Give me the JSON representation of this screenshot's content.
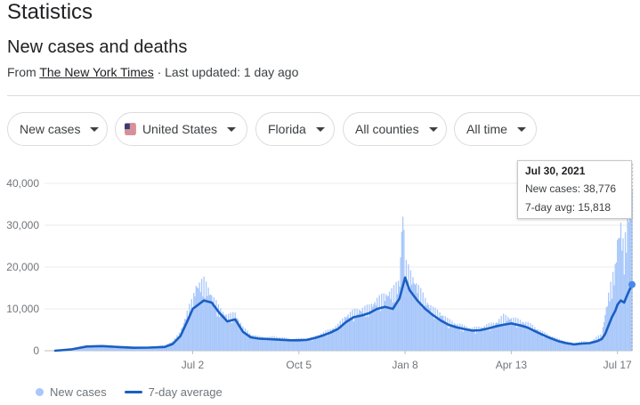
{
  "page": {
    "title": "Statistics",
    "subtitle": "New cases and deaths",
    "source_prefix": "From ",
    "source_name": "The New York Times",
    "source_suffix": " · Last updated: 1 day ago"
  },
  "filters": [
    {
      "label": "New cases"
    },
    {
      "label": "United States",
      "icon": "us-flag-icon"
    },
    {
      "label": "Florida"
    },
    {
      "label": "All counties"
    },
    {
      "label": "All time"
    }
  ],
  "tooltip": {
    "date": "Jul 30, 2021",
    "new_cases": "New cases: 38,776",
    "avg": "7-day avg: 15,818"
  },
  "legend": {
    "new_cases": "New cases",
    "avg": "7-day average"
  },
  "colors": {
    "bar": "#a8c7fa",
    "line": "#1a5fc2",
    "grid": "#ebebeb",
    "axis_text": "#70757a"
  },
  "chart_data": {
    "type": "bar",
    "ylim": [
      0,
      40000
    ],
    "yticks": [
      "0",
      "10,000",
      "20,000",
      "30,000",
      "40,000"
    ],
    "xticks": [
      "Jul 2",
      "Oct 5",
      "Jan 8",
      "Apr 13",
      "Jul 17"
    ],
    "grid": true,
    "legend_position": "bottom-left",
    "series": [
      {
        "name": "New cases",
        "type": "bar",
        "points": [
          [
            "Mar 1",
            0
          ],
          [
            "Mar 15",
            300
          ],
          [
            "Mar 29",
            1000
          ],
          [
            "Apr 12",
            1200
          ],
          [
            "Apr 26",
            800
          ],
          [
            "May 10",
            700
          ],
          [
            "May 24",
            800
          ],
          [
            "Jun 7",
            1200
          ],
          [
            "Jun 14",
            2000
          ],
          [
            "Jun 21",
            4000
          ],
          [
            "Jun 28",
            9000
          ],
          [
            "Jul 2",
            11000
          ],
          [
            "Jul 5",
            14000
          ],
          [
            "Jul 12",
            15000
          ],
          [
            "Jul 19",
            12000
          ],
          [
            "Jul 26",
            9000
          ],
          [
            "Aug 2",
            7500
          ],
          [
            "Aug 9",
            8000
          ],
          [
            "Aug 16",
            5000
          ],
          [
            "Aug 23",
            3500
          ],
          [
            "Aug 30",
            3000
          ],
          [
            "Sep 6",
            2800
          ],
          [
            "Sep 13",
            3000
          ],
          [
            "Sep 20",
            2800
          ],
          [
            "Sep 27",
            2500
          ],
          [
            "Oct 5",
            2600
          ],
          [
            "Oct 12",
            2500
          ],
          [
            "Oct 19",
            3000
          ],
          [
            "Oct 26",
            3800
          ],
          [
            "Nov 2",
            4500
          ],
          [
            "Nov 9",
            5500
          ],
          [
            "Nov 16",
            7500
          ],
          [
            "Nov 23",
            8500
          ],
          [
            "Nov 30",
            9000
          ],
          [
            "Dec 7",
            9500
          ],
          [
            "Dec 14",
            11000
          ],
          [
            "Dec 21",
            12000
          ],
          [
            "Dec 28",
            13000
          ],
          [
            "Jan 3",
            15000
          ],
          [
            "Jan 6",
            31500
          ],
          [
            "Jan 8",
            19000
          ],
          [
            "Jan 12",
            17000
          ],
          [
            "Jan 19",
            14000
          ],
          [
            "Jan 26",
            11000
          ],
          [
            "Feb 2",
            9000
          ],
          [
            "Feb 9",
            8000
          ],
          [
            "Feb 16",
            6500
          ],
          [
            "Feb 23",
            5800
          ],
          [
            "Mar 2",
            5200
          ],
          [
            "Mar 9",
            4800
          ],
          [
            "Mar 16",
            5000
          ],
          [
            "Mar 23",
            5500
          ],
          [
            "Mar 30",
            6000
          ],
          [
            "Apr 6",
            7500
          ],
          [
            "Apr 13",
            7000
          ],
          [
            "Apr 20",
            6500
          ],
          [
            "Apr 27",
            6000
          ],
          [
            "May 4",
            5000
          ],
          [
            "May 11",
            4000
          ],
          [
            "May 18",
            3200
          ],
          [
            "May 25",
            2500
          ],
          [
            "Jun 1",
            2000
          ],
          [
            "Jun 8",
            1600
          ],
          [
            "Jun 15",
            2000
          ],
          [
            "Jun 22",
            1800
          ],
          [
            "Jun 29",
            3000
          ],
          [
            "Jul 3",
            3500
          ],
          [
            "Jul 6",
            8000
          ],
          [
            "Jul 9",
            12000
          ],
          [
            "Jul 12",
            15000
          ],
          [
            "Jul 15",
            18000
          ],
          [
            "Jul 17",
            24000
          ],
          [
            "Jul 20",
            27000
          ],
          [
            "Jul 23",
            21000
          ],
          [
            "Jul 26",
            30000
          ],
          [
            "Jul 30",
            38776
          ]
        ]
      },
      {
        "name": "7-day average",
        "type": "line",
        "points": [
          [
            "Mar 1",
            0
          ],
          [
            "Mar 15",
            300
          ],
          [
            "Mar 29",
            1000
          ],
          [
            "Apr 12",
            1100
          ],
          [
            "Apr 26",
            900
          ],
          [
            "May 10",
            700
          ],
          [
            "May 24",
            750
          ],
          [
            "Jun 7",
            900
          ],
          [
            "Jun 14",
            1600
          ],
          [
            "Jun 21",
            3500
          ],
          [
            "Jun 28",
            7500
          ],
          [
            "Jul 2",
            10000
          ],
          [
            "Jul 12",
            12000
          ],
          [
            "Jul 19",
            11500
          ],
          [
            "Jul 26",
            9000
          ],
          [
            "Aug 2",
            7000
          ],
          [
            "Aug 9",
            7500
          ],
          [
            "Aug 16",
            4500
          ],
          [
            "Aug 23",
            3200
          ],
          [
            "Aug 30",
            2900
          ],
          [
            "Sep 6",
            2800
          ],
          [
            "Sep 13",
            2700
          ],
          [
            "Sep 20",
            2600
          ],
          [
            "Sep 27",
            2500
          ],
          [
            "Oct 5",
            2500
          ],
          [
            "Oct 12",
            2600
          ],
          [
            "Oct 19",
            3000
          ],
          [
            "Oct 26",
            3600
          ],
          [
            "Nov 2",
            4300
          ],
          [
            "Nov 9",
            5200
          ],
          [
            "Nov 16",
            6800
          ],
          [
            "Nov 23",
            8000
          ],
          [
            "Nov 30",
            8400
          ],
          [
            "Dec 7",
            9000
          ],
          [
            "Dec 14",
            10000
          ],
          [
            "Dec 21",
            10500
          ],
          [
            "Dec 28",
            10000
          ],
          [
            "Jan 3",
            12500
          ],
          [
            "Jan 8",
            17500
          ],
          [
            "Jan 12",
            14500
          ],
          [
            "Jan 19",
            12000
          ],
          [
            "Jan 26",
            10000
          ],
          [
            "Feb 2",
            8500
          ],
          [
            "Feb 9",
            7200
          ],
          [
            "Feb 16",
            6200
          ],
          [
            "Feb 23",
            5600
          ],
          [
            "Mar 2",
            5200
          ],
          [
            "Mar 9",
            4800
          ],
          [
            "Mar 16",
            4900
          ],
          [
            "Mar 23",
            5300
          ],
          [
            "Mar 30",
            5800
          ],
          [
            "Apr 6",
            6200
          ],
          [
            "Apr 13",
            6500
          ],
          [
            "Apr 20",
            6100
          ],
          [
            "Apr 27",
            5600
          ],
          [
            "May 4",
            4700
          ],
          [
            "May 11",
            3800
          ],
          [
            "May 18",
            3000
          ],
          [
            "May 25",
            2300
          ],
          [
            "Jun 1",
            1800
          ],
          [
            "Jun 8",
            1500
          ],
          [
            "Jun 15",
            1700
          ],
          [
            "Jun 22",
            1800
          ],
          [
            "Jun 29",
            2300
          ],
          [
            "Jul 3",
            2800
          ],
          [
            "Jul 6",
            4000
          ],
          [
            "Jul 9",
            6000
          ],
          [
            "Jul 12",
            8000
          ],
          [
            "Jul 15",
            9500
          ],
          [
            "Jul 17",
            11000
          ],
          [
            "Jul 20",
            12000
          ],
          [
            "Jul 23",
            11500
          ],
          [
            "Jul 26",
            13500
          ],
          [
            "Jul 30",
            15818
          ]
        ]
      }
    ]
  }
}
